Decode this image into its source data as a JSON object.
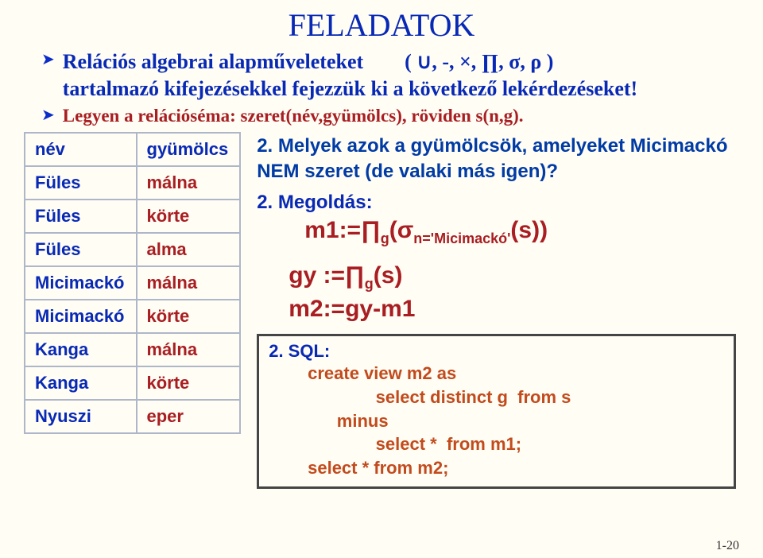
{
  "title": "FELADATOK",
  "bullet1_part1": "Relációs algebrai alapműveleteket",
  "bullet1_ops": "( ∪, -, ×, ∏, σ, ρ )",
  "bullet1_part2": "tartalmazó kifejezésekkel fejezzük ki a következő lekérdezéseket!",
  "bullet2": "Legyen a relációséma: szeret(név,gyümölcs), röviden s(n,g).",
  "table": {
    "columns": [
      "név",
      "gyümölcs"
    ],
    "rows": [
      [
        "Füles",
        "málna"
      ],
      [
        "Füles",
        "körte"
      ],
      [
        "Füles",
        "alma"
      ],
      [
        "Micimackó",
        "málna"
      ],
      [
        "Micimackó",
        "körte"
      ],
      [
        "Kanga",
        "málna"
      ],
      [
        "Kanga",
        "körte"
      ],
      [
        "Nyuszi",
        "eper"
      ]
    ]
  },
  "question2": "2. Melyek azok a gyümölcsök, amelyeket Micimackó NEM szeret (de valaki más igen)?",
  "solution_label": "2. Megoldás:",
  "formula_m1_lhs": "m1:=∏",
  "formula_m1_sub1": "g",
  "formula_m1_sigma": "(σ",
  "formula_m1_sub2": "n='Micimackó'",
  "formula_m1_tail": "(s))",
  "formula_gy_lhs": "gy :=∏",
  "formula_gy_sub": "g",
  "formula_gy_tail": "(s)",
  "formula_m2": "m2:=gy-m1",
  "sql_label": "2. SQL:",
  "sql_line1": "create view m2 as",
  "sql_line2": "                      select distinct g  from s",
  "sql_line3": "              minus",
  "sql_line4": "                      select *  from m1;",
  "sql_line5": "select * from m2;",
  "page_number": "1-20",
  "colors": {
    "title": "#0829b5",
    "bullet_blue": "#0829b5",
    "bullet_red": "#a81e22",
    "table_border": "#aeb7c9",
    "formula_red": "#a81e22",
    "sql_orange": "#c24b1d",
    "sql_box_border": "#454545",
    "background": "#fffdf4"
  }
}
